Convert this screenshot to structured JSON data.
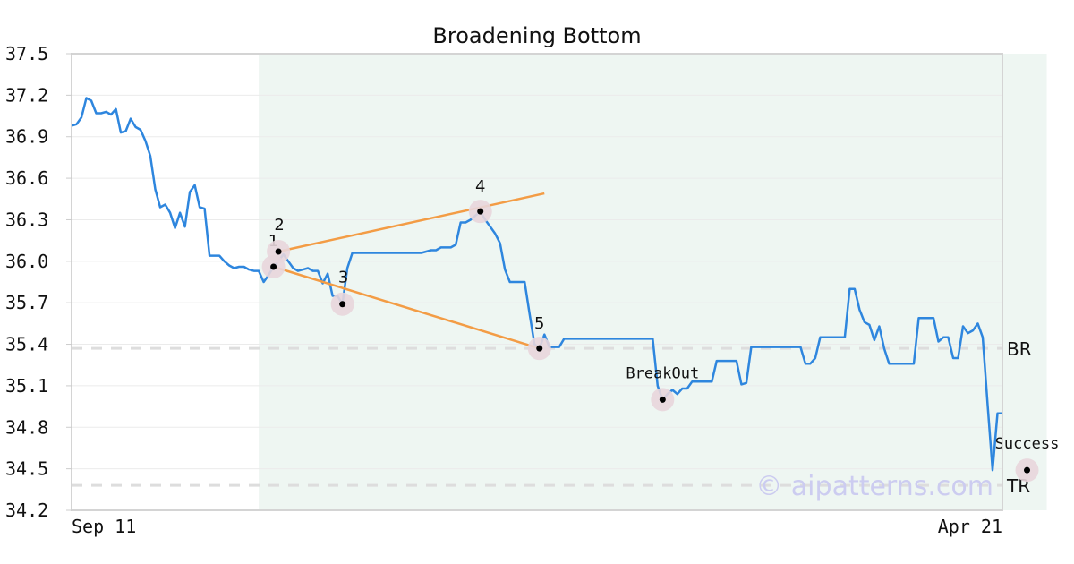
{
  "chart_data": {
    "type": "line",
    "title": "Broadening Bottom",
    "x_tick_labels": [
      "Sep 11",
      "Apr 21"
    ],
    "ylim": [
      34.2,
      37.5
    ],
    "y_ticks": [
      "37.5",
      "37.2",
      "36.9",
      "36.6",
      "36.3",
      "36.0",
      "35.7",
      "35.4",
      "35.1",
      "34.8",
      "34.5",
      "34.2"
    ],
    "grid": true,
    "watermark": "© aipatterns.com",
    "colors": {
      "price_line": "#2e86de",
      "trend_line": "#f39c45",
      "pattern_region": "#eef6f2",
      "marker_halo": "#e8d6dc",
      "reference_line": "#dddddd"
    },
    "reference_lines": [
      {
        "label": "BR",
        "value": 35.37
      },
      {
        "label": "TR",
        "value": 34.38
      }
    ],
    "pattern_region": {
      "start_index": 38,
      "end_index": 198
    },
    "points": [
      {
        "label": "1",
        "index": 41,
        "value": 35.96
      },
      {
        "label": "2",
        "index": 42,
        "value": 36.07
      },
      {
        "label": "3",
        "index": 55,
        "value": 35.69
      },
      {
        "label": "4",
        "index": 83,
        "value": 36.36
      },
      {
        "label": "5",
        "index": 95,
        "value": 35.37
      },
      {
        "label": "BreakOut",
        "index": 120,
        "value": 35.0
      },
      {
        "label": "Success",
        "index": 194,
        "value": 34.49
      }
    ],
    "trend_lines": [
      {
        "from": {
          "index": 42,
          "value": 36.07
        },
        "to": {
          "index": 96,
          "value": 36.49
        }
      },
      {
        "from": {
          "index": 41,
          "value": 35.96
        },
        "to": {
          "index": 95,
          "value": 35.37
        }
      }
    ],
    "series": [
      {
        "values": [
          36.98,
          36.99,
          37.04,
          37.18,
          37.16,
          37.07,
          37.07,
          37.08,
          37.06,
          37.1,
          36.93,
          36.94,
          37.03,
          36.97,
          36.95,
          36.87,
          36.76,
          36.52,
          36.39,
          36.41,
          36.35,
          36.24,
          36.35,
          36.25,
          36.5,
          36.55,
          36.39,
          36.38,
          36.04,
          36.04,
          36.04,
          36.0,
          35.97,
          35.95,
          35.96,
          35.96,
          35.94,
          35.93,
          35.93,
          35.85,
          35.9,
          35.96,
          36.0,
          36.05,
          36.0,
          35.95,
          35.93,
          35.94,
          35.95,
          35.93,
          35.93,
          35.84,
          35.91,
          35.75,
          35.75,
          35.69,
          35.95,
          36.06,
          36.06,
          36.06,
          36.06,
          36.06,
          36.06,
          36.06,
          36.06,
          36.06,
          36.06,
          36.06,
          36.06,
          36.06,
          36.06,
          36.06,
          36.07,
          36.08,
          36.08,
          36.1,
          36.1,
          36.1,
          36.12,
          36.28,
          36.28,
          36.3,
          36.33,
          36.36,
          36.3,
          36.25,
          36.2,
          36.13,
          35.94,
          35.85,
          35.85,
          35.85,
          35.85,
          35.62,
          35.4,
          35.37,
          35.47,
          35.38,
          35.38,
          35.38,
          35.44,
          35.44,
          35.44,
          35.44,
          35.44,
          35.44,
          35.44,
          35.44,
          35.44,
          35.44,
          35.44,
          35.44,
          35.44,
          35.44,
          35.44,
          35.44,
          35.44,
          35.44,
          35.44,
          35.1,
          35.0,
          35.04,
          35.07,
          35.04,
          35.08,
          35.08,
          35.13,
          35.13,
          35.13,
          35.13,
          35.13,
          35.28,
          35.28,
          35.28,
          35.28,
          35.28,
          35.11,
          35.12,
          35.38,
          35.38,
          35.38,
          35.38,
          35.38,
          35.38,
          35.38,
          35.38,
          35.38,
          35.38,
          35.38,
          35.26,
          35.26,
          35.3,
          35.45,
          35.45,
          35.45,
          35.45,
          35.45,
          35.45,
          35.8,
          35.8,
          35.65,
          35.56,
          35.54,
          35.43,
          35.53,
          35.37,
          35.26,
          35.26,
          35.26,
          35.26,
          35.26,
          35.26,
          35.59,
          35.59,
          35.59,
          35.59,
          35.42,
          35.45,
          35.45,
          35.3,
          35.3,
          35.53,
          35.48,
          35.5,
          35.55,
          35.45,
          34.96,
          34.49,
          34.9,
          34.9
        ]
      }
    ]
  }
}
